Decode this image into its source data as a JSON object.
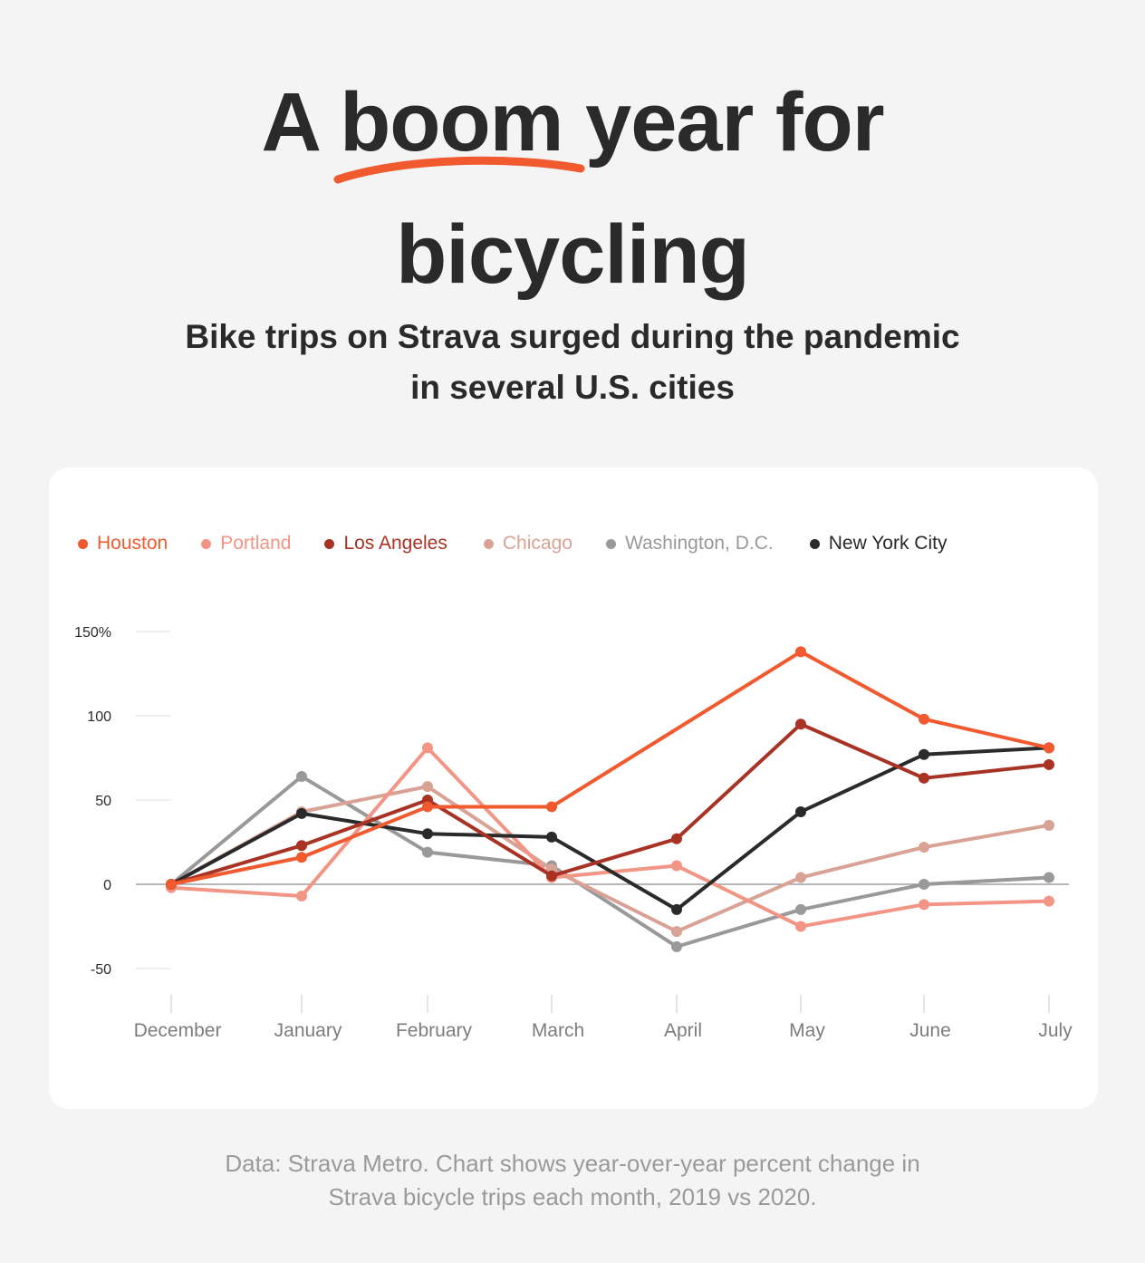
{
  "title": {
    "part1": "A ",
    "highlight": "boom",
    "part2": " year for",
    "line2": "bicycling"
  },
  "subtitle": {
    "line1": "Bike trips on Strava surged during the pandemic",
    "line2": "in several U.S. cities"
  },
  "footnote": {
    "line1": "Data: Strava Metro. Chart shows year-over-year percent change in",
    "line2": "Strava bicycle trips each month, 2019 vs 2020."
  },
  "colors": {
    "accent": "#f05a2e",
    "background": "#f4f4f4",
    "card": "#ffffff"
  },
  "chart_data": {
    "type": "line",
    "categories": [
      "December",
      "January",
      "February",
      "March",
      "April",
      "May",
      "June",
      "July"
    ],
    "y_ticks": [
      {
        "value": 150,
        "label": "150%"
      },
      {
        "value": 100,
        "label": "100"
      },
      {
        "value": 50,
        "label": "50"
      },
      {
        "value": 0,
        "label": "0"
      },
      {
        "value": -50,
        "label": "-50"
      }
    ],
    "ylim": [
      -50,
      150
    ],
    "grid": false,
    "legend_position": "top-left",
    "series": [
      {
        "name": "Houston",
        "color": "#f05a2e",
        "values": [
          0,
          16,
          46,
          46,
          null,
          138,
          98,
          81
        ]
      },
      {
        "name": "Portland",
        "color": "#f39585",
        "values": [
          -2,
          -7,
          81,
          4,
          11,
          -25,
          -12,
          -10
        ]
      },
      {
        "name": "Los Angeles",
        "color": "#a83325",
        "values": [
          0,
          23,
          50,
          5,
          27,
          95,
          63,
          71
        ]
      },
      {
        "name": "Chicago",
        "color": "#d8a295",
        "values": [
          0,
          43,
          58,
          9,
          -28,
          4,
          22,
          35
        ]
      },
      {
        "name": "Washington, D.C.",
        "color": "#999999",
        "values": [
          0,
          64,
          19,
          11,
          -37,
          -15,
          0,
          4
        ]
      },
      {
        "name": "New York City",
        "color": "#2b2a2a",
        "values": [
          0,
          42,
          30,
          28,
          -15,
          43,
          77,
          81
        ]
      }
    ]
  }
}
